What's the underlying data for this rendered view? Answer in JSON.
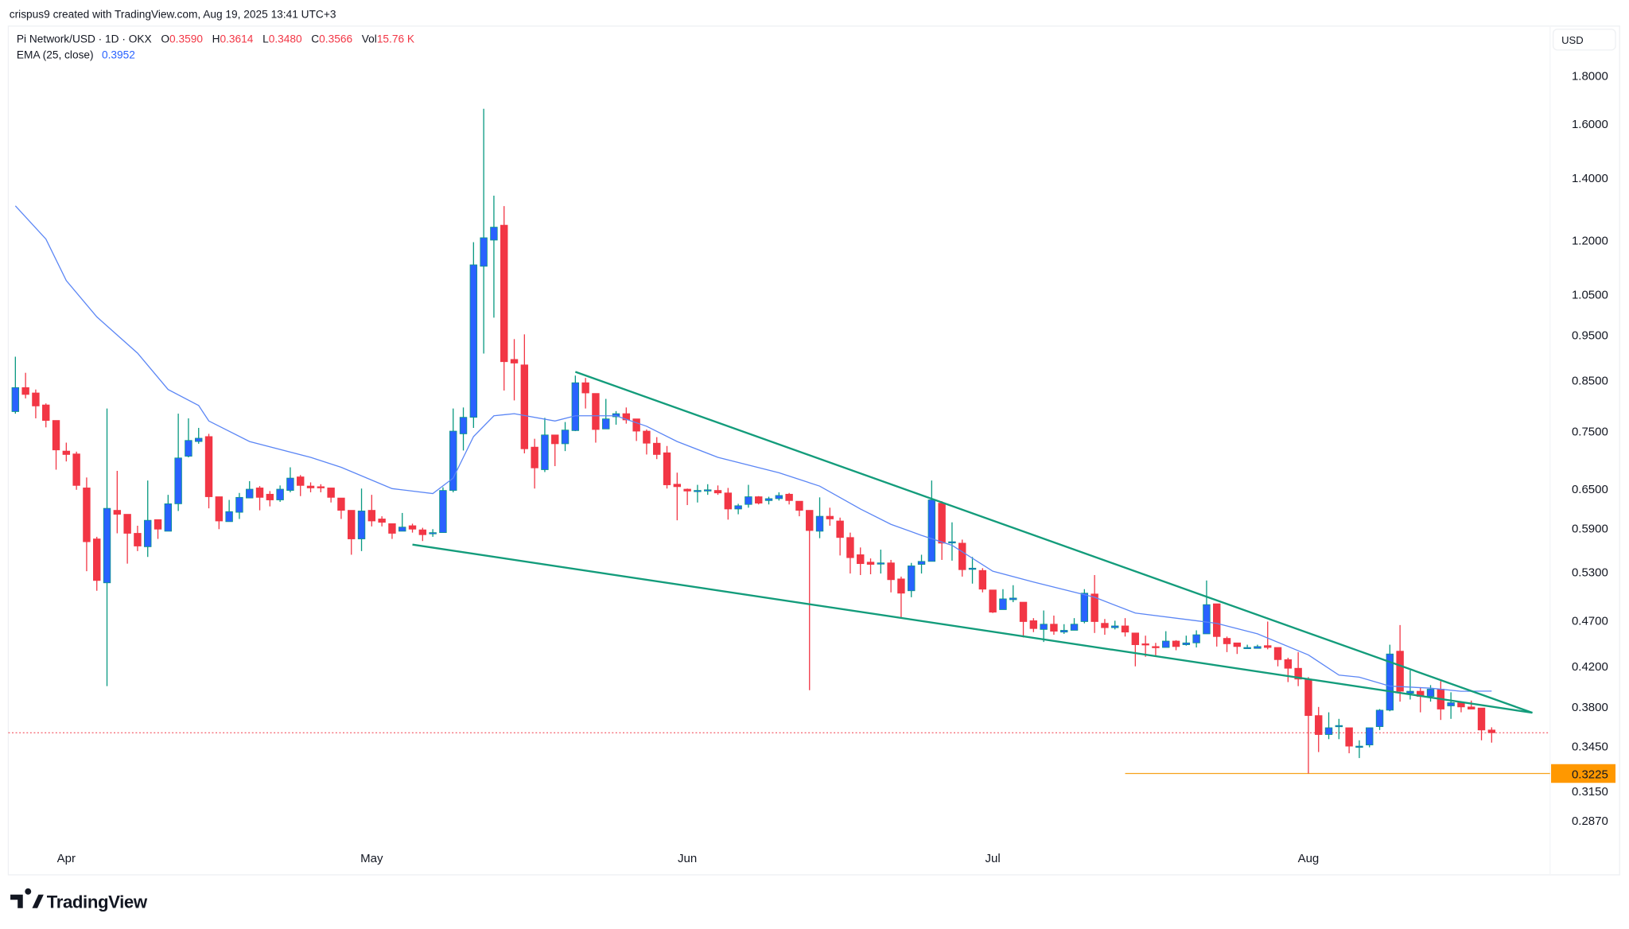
{
  "attribution": "crispus9 created with TradingView.com, Aug 19, 2025 13:41 UTC+3",
  "legend": {
    "symbol": "Pi Network/USD · 1D · OKX",
    "open_label": "O",
    "open": "0.3590",
    "high_label": "H",
    "high": "0.3614",
    "low_label": "L",
    "low": "0.3480",
    "close_label": "C",
    "close": "0.3566",
    "vol_label": "Vol",
    "vol": "15.76 K",
    "ema_label": "EMA (25, close)",
    "ema_value": "0.3952"
  },
  "currency": "USD",
  "branding": {
    "logo_text": "TradingView"
  },
  "chart_data": {
    "type": "candlestick",
    "title": "Pi Network/USD · 1D · OKX",
    "y_scale": "log",
    "ylim": [
      0.265,
      1.8
    ],
    "grid": false,
    "y_ticks": [
      "1.8000",
      "1.6000",
      "1.4000",
      "1.2000",
      "1.0500",
      "0.9500",
      "0.8500",
      "0.7500",
      "0.6500",
      "0.5900",
      "0.5300",
      "0.4700",
      "0.4200",
      "0.3800",
      "0.3450",
      "0.3150",
      "0.2870"
    ],
    "x_ticks": [
      {
        "label": "Apr",
        "date": "2025-04-01"
      },
      {
        "label": "May",
        "date": "2025-05-01"
      },
      {
        "label": "Jun",
        "date": "2025-06-01"
      },
      {
        "label": "Jul",
        "date": "2025-07-01"
      },
      {
        "label": "Aug",
        "date": "2025-08-01"
      }
    ],
    "colors": {
      "up": "#2962ff",
      "up_wick": "#089981",
      "down": "#f23645",
      "ema": "#5b86f5",
      "trendline": "#139c7b",
      "support": "#f7a21b",
      "last_price": "#f23645"
    },
    "candles_columns": [
      "date",
      "open",
      "high",
      "low",
      "close"
    ],
    "candles": [
      [
        "2025-03-27",
        0.787,
        0.901,
        0.783,
        0.835
      ],
      [
        "2025-03-28",
        0.835,
        0.866,
        0.813,
        0.821
      ],
      [
        "2025-03-29",
        0.824,
        0.831,
        0.774,
        0.798
      ],
      [
        "2025-03-30",
        0.8,
        0.803,
        0.757,
        0.77
      ],
      [
        "2025-03-31",
        0.77,
        0.77,
        0.682,
        0.716
      ],
      [
        "2025-04-01",
        0.714,
        0.729,
        0.696,
        0.708
      ],
      [
        "2025-04-02",
        0.709,
        0.713,
        0.649,
        0.656
      ],
      [
        "2025-04-03",
        0.652,
        0.669,
        0.531,
        0.571
      ],
      [
        "2025-04-04",
        0.575,
        0.578,
        0.506,
        0.519
      ],
      [
        "2025-04-05",
        0.516,
        0.793,
        0.4,
        0.62
      ],
      [
        "2025-04-06",
        0.617,
        0.68,
        0.583,
        0.611
      ],
      [
        "2025-04-07",
        0.611,
        0.611,
        0.541,
        0.583
      ],
      [
        "2025-04-08",
        0.583,
        0.594,
        0.558,
        0.565
      ],
      [
        "2025-04-09",
        0.564,
        0.664,
        0.55,
        0.602
      ],
      [
        "2025-04-10",
        0.603,
        0.603,
        0.575,
        0.589
      ],
      [
        "2025-04-11",
        0.586,
        0.641,
        0.586,
        0.627
      ],
      [
        "2025-04-12",
        0.627,
        0.783,
        0.616,
        0.702
      ],
      [
        "2025-04-13",
        0.705,
        0.774,
        0.703,
        0.733
      ],
      [
        "2025-04-14",
        0.731,
        0.756,
        0.727,
        0.737
      ],
      [
        "2025-04-15",
        0.74,
        0.745,
        0.62,
        0.638
      ],
      [
        "2025-04-16",
        0.638,
        0.638,
        0.589,
        0.601
      ],
      [
        "2025-04-17",
        0.6,
        0.633,
        0.6,
        0.615
      ],
      [
        "2025-04-18",
        0.614,
        0.644,
        0.604,
        0.637
      ],
      [
        "2025-04-19",
        0.636,
        0.663,
        0.636,
        0.65
      ],
      [
        "2025-04-20",
        0.652,
        0.655,
        0.617,
        0.637
      ],
      [
        "2025-04-21",
        0.642,
        0.647,
        0.623,
        0.633
      ],
      [
        "2025-04-22",
        0.633,
        0.656,
        0.63,
        0.65
      ],
      [
        "2025-04-23",
        0.648,
        0.686,
        0.645,
        0.668
      ],
      [
        "2025-04-24",
        0.67,
        0.673,
        0.639,
        0.656
      ],
      [
        "2025-04-25",
        0.655,
        0.661,
        0.645,
        0.652
      ],
      [
        "2025-04-26",
        0.654,
        0.658,
        0.645,
        0.653
      ],
      [
        "2025-04-27",
        0.652,
        0.652,
        0.629,
        0.637
      ],
      [
        "2025-04-28",
        0.636,
        0.636,
        0.604,
        0.617
      ],
      [
        "2025-04-29",
        0.617,
        0.617,
        0.553,
        0.575
      ],
      [
        "2025-04-30",
        0.575,
        0.651,
        0.558,
        0.616
      ],
      [
        "2025-05-01",
        0.617,
        0.641,
        0.593,
        0.601
      ],
      [
        "2025-05-02",
        0.604,
        0.608,
        0.593,
        0.599
      ],
      [
        "2025-05-03",
        0.597,
        0.597,
        0.575,
        0.583
      ],
      [
        "2025-05-04",
        0.586,
        0.613,
        0.586,
        0.592
      ],
      [
        "2025-05-05",
        0.594,
        0.597,
        0.584,
        0.589
      ],
      [
        "2025-05-06",
        0.588,
        0.591,
        0.572,
        0.581
      ],
      [
        "2025-05-07",
        0.583,
        0.589,
        0.578,
        0.584
      ],
      [
        "2025-05-08",
        0.584,
        0.653,
        0.584,
        0.648
      ],
      [
        "2025-05-09",
        0.648,
        0.793,
        0.645,
        0.75
      ],
      [
        "2025-05-10",
        0.745,
        0.795,
        0.715,
        0.776
      ],
      [
        "2025-05-11",
        0.776,
        1.195,
        0.756,
        1.13
      ],
      [
        "2025-05-12",
        1.126,
        1.66,
        0.908,
        1.208
      ],
      [
        "2025-05-13",
        1.201,
        1.34,
        0.992,
        1.24
      ],
      [
        "2025-05-14",
        1.246,
        1.306,
        0.829,
        0.89
      ],
      [
        "2025-05-15",
        0.895,
        0.941,
        0.809,
        0.887
      ],
      [
        "2025-05-16",
        0.883,
        0.952,
        0.71,
        0.718
      ],
      [
        "2025-05-17",
        0.721,
        0.736,
        0.651,
        0.685
      ],
      [
        "2025-05-18",
        0.682,
        0.775,
        0.678,
        0.743
      ],
      [
        "2025-05-19",
        0.743,
        0.743,
        0.688,
        0.727
      ],
      [
        "2025-05-20",
        0.727,
        0.767,
        0.714,
        0.752
      ],
      [
        "2025-05-21",
        0.751,
        0.86,
        0.75,
        0.845
      ],
      [
        "2025-05-22",
        0.845,
        0.855,
        0.793,
        0.824
      ],
      [
        "2025-05-23",
        0.823,
        0.823,
        0.729,
        0.753
      ],
      [
        "2025-05-24",
        0.754,
        0.812,
        0.754,
        0.773
      ],
      [
        "2025-05-25",
        0.777,
        0.788,
        0.762,
        0.783
      ],
      [
        "2025-05-26",
        0.783,
        0.795,
        0.764,
        0.771
      ],
      [
        "2025-05-27",
        0.773,
        0.773,
        0.732,
        0.75
      ],
      [
        "2025-05-28",
        0.75,
        0.753,
        0.708,
        0.728
      ],
      [
        "2025-05-29",
        0.728,
        0.739,
        0.7,
        0.708
      ],
      [
        "2025-05-30",
        0.711,
        0.723,
        0.651,
        0.657
      ],
      [
        "2025-05-31",
        0.658,
        0.677,
        0.602,
        0.654
      ],
      [
        "2025-06-01",
        0.65,
        0.651,
        0.625,
        0.647
      ],
      [
        "2025-06-02",
        0.647,
        0.657,
        0.629,
        0.648
      ],
      [
        "2025-06-03",
        0.648,
        0.658,
        0.641,
        0.649
      ],
      [
        "2025-06-04",
        0.648,
        0.656,
        0.641,
        0.644
      ],
      [
        "2025-06-05",
        0.644,
        0.652,
        0.603,
        0.619
      ],
      [
        "2025-06-06",
        0.619,
        0.627,
        0.611,
        0.624
      ],
      [
        "2025-06-07",
        0.626,
        0.657,
        0.621,
        0.638
      ],
      [
        "2025-06-08",
        0.638,
        0.639,
        0.626,
        0.628
      ],
      [
        "2025-06-09",
        0.632,
        0.638,
        0.626,
        0.635
      ],
      [
        "2025-06-10",
        0.635,
        0.645,
        0.632,
        0.64
      ],
      [
        "2025-06-11",
        0.642,
        0.644,
        0.626,
        0.632
      ],
      [
        "2025-06-12",
        0.631,
        0.631,
        0.608,
        0.617
      ],
      [
        "2025-06-13",
        0.617,
        0.617,
        0.396,
        0.587
      ],
      [
        "2025-06-14",
        0.586,
        0.637,
        0.576,
        0.608
      ],
      [
        "2025-06-15",
        0.608,
        0.621,
        0.594,
        0.604
      ],
      [
        "2025-06-16",
        0.601,
        0.606,
        0.552,
        0.577
      ],
      [
        "2025-06-17",
        0.577,
        0.584,
        0.528,
        0.549
      ],
      [
        "2025-06-18",
        0.553,
        0.563,
        0.526,
        0.541
      ],
      [
        "2025-06-19",
        0.543,
        0.548,
        0.527,
        0.54
      ],
      [
        "2025-06-20",
        0.542,
        0.56,
        0.528,
        0.542
      ],
      [
        "2025-06-21",
        0.542,
        0.546,
        0.504,
        0.52
      ],
      [
        "2025-06-22",
        0.521,
        0.524,
        0.474,
        0.503
      ],
      [
        "2025-06-23",
        0.506,
        0.542,
        0.498,
        0.538
      ],
      [
        "2025-06-24",
        0.54,
        0.553,
        0.528,
        0.544
      ],
      [
        "2025-06-25",
        0.544,
        0.664,
        0.544,
        0.633
      ],
      [
        "2025-06-26",
        0.628,
        0.631,
        0.546,
        0.569
      ],
      [
        "2025-06-27",
        0.571,
        0.599,
        0.545,
        0.571
      ],
      [
        "2025-06-28",
        0.569,
        0.574,
        0.524,
        0.533
      ],
      [
        "2025-06-29",
        0.535,
        0.55,
        0.515,
        0.535
      ],
      [
        "2025-06-30",
        0.532,
        0.535,
        0.504,
        0.508
      ],
      [
        "2025-07-01",
        0.507,
        0.507,
        0.479,
        0.48
      ],
      [
        "2025-07-02",
        0.483,
        0.508,
        0.483,
        0.496
      ],
      [
        "2025-07-03",
        0.495,
        0.513,
        0.492,
        0.497
      ],
      [
        "2025-07-04",
        0.492,
        0.492,
        0.451,
        0.469
      ],
      [
        "2025-07-05",
        0.47,
        0.473,
        0.457,
        0.461
      ],
      [
        "2025-07-06",
        0.46,
        0.482,
        0.446,
        0.466
      ],
      [
        "2025-07-07",
        0.466,
        0.476,
        0.454,
        0.458
      ],
      [
        "2025-07-08",
        0.457,
        0.466,
        0.455,
        0.459
      ],
      [
        "2025-07-09",
        0.459,
        0.473,
        0.459,
        0.466
      ],
      [
        "2025-07-10",
        0.469,
        0.508,
        0.467,
        0.503
      ],
      [
        "2025-07-11",
        0.502,
        0.526,
        0.456,
        0.469
      ],
      [
        "2025-07-12",
        0.467,
        0.472,
        0.454,
        0.462
      ],
      [
        "2025-07-13",
        0.462,
        0.47,
        0.46,
        0.464
      ],
      [
        "2025-07-14",
        0.464,
        0.473,
        0.452,
        0.457
      ],
      [
        "2025-07-15",
        0.456,
        0.456,
        0.42,
        0.443
      ],
      [
        "2025-07-16",
        0.444,
        0.453,
        0.43,
        0.443
      ],
      [
        "2025-07-17",
        0.441,
        0.445,
        0.431,
        0.44
      ],
      [
        "2025-07-18",
        0.44,
        0.458,
        0.44,
        0.447
      ],
      [
        "2025-07-19",
        0.447,
        0.448,
        0.437,
        0.441
      ],
      [
        "2025-07-20",
        0.443,
        0.453,
        0.442,
        0.445
      ],
      [
        "2025-07-21",
        0.445,
        0.459,
        0.44,
        0.454
      ],
      [
        "2025-07-22",
        0.455,
        0.519,
        0.455,
        0.489
      ],
      [
        "2025-07-23",
        0.49,
        0.49,
        0.441,
        0.452
      ],
      [
        "2025-07-24",
        0.45,
        0.452,
        0.435,
        0.444
      ],
      [
        "2025-07-25",
        0.445,
        0.445,
        0.433,
        0.441
      ],
      [
        "2025-07-26",
        0.44,
        0.443,
        0.439,
        0.44
      ],
      [
        "2025-07-27",
        0.439,
        0.443,
        0.439,
        0.441
      ],
      [
        "2025-07-28",
        0.442,
        0.469,
        0.438,
        0.44
      ],
      [
        "2025-07-29",
        0.44,
        0.44,
        0.42,
        0.427
      ],
      [
        "2025-07-30",
        0.427,
        0.429,
        0.404,
        0.418
      ],
      [
        "2025-07-31",
        0.418,
        0.435,
        0.4,
        0.407
      ],
      [
        "2025-08-01",
        0.407,
        0.409,
        0.3225,
        0.372
      ],
      [
        "2025-08-02",
        0.372,
        0.38,
        0.34,
        0.355
      ],
      [
        "2025-08-03",
        0.355,
        0.375,
        0.351,
        0.361
      ],
      [
        "2025-08-04",
        0.363,
        0.369,
        0.351,
        0.363
      ],
      [
        "2025-08-05",
        0.361,
        0.361,
        0.339,
        0.345
      ],
      [
        "2025-08-06",
        0.345,
        0.35,
        0.335,
        0.345
      ],
      [
        "2025-08-07",
        0.346,
        0.361,
        0.344,
        0.361
      ],
      [
        "2025-08-08",
        0.362,
        0.378,
        0.359,
        0.377
      ],
      [
        "2025-08-09",
        0.377,
        0.443,
        0.376,
        0.433
      ],
      [
        "2025-08-10",
        0.436,
        0.465,
        0.385,
        0.395
      ],
      [
        "2025-08-11",
        0.393,
        0.416,
        0.387,
        0.395
      ],
      [
        "2025-08-12",
        0.395,
        0.399,
        0.375,
        0.39
      ],
      [
        "2025-08-13",
        0.39,
        0.401,
        0.385,
        0.397
      ],
      [
        "2025-08-14",
        0.397,
        0.405,
        0.368,
        0.378
      ],
      [
        "2025-08-15",
        0.381,
        0.394,
        0.369,
        0.384
      ],
      [
        "2025-08-16",
        0.384,
        0.385,
        0.375,
        0.38
      ],
      [
        "2025-08-17",
        0.38,
        0.386,
        0.378,
        0.378
      ],
      [
        "2025-08-18",
        0.379,
        0.379,
        0.35,
        0.359
      ],
      [
        "2025-08-19",
        0.359,
        0.3614,
        0.348,
        0.3566
      ]
    ],
    "ema": {
      "name": "EMA (25, close)",
      "points": [
        [
          "2025-03-27",
          1.307
        ],
        [
          "2025-03-30",
          1.204
        ],
        [
          "2025-04-01",
          1.087
        ],
        [
          "2025-04-04",
          0.994
        ],
        [
          "2025-04-08",
          0.909
        ],
        [
          "2025-04-11",
          0.831
        ],
        [
          "2025-04-14",
          0.799
        ],
        [
          "2025-04-15",
          0.769
        ],
        [
          "2025-04-19",
          0.731
        ],
        [
          "2025-04-25",
          0.703
        ],
        [
          "2025-04-28",
          0.686
        ],
        [
          "2025-05-03",
          0.651
        ],
        [
          "2025-05-07",
          0.643
        ],
        [
          "2025-05-09",
          0.668
        ],
        [
          "2025-05-11",
          0.74
        ],
        [
          "2025-05-13",
          0.779
        ],
        [
          "2025-05-15",
          0.783
        ],
        [
          "2025-05-19",
          0.769
        ],
        [
          "2025-05-21",
          0.779
        ],
        [
          "2025-05-25",
          0.779
        ],
        [
          "2025-05-28",
          0.759
        ],
        [
          "2025-05-31",
          0.731
        ],
        [
          "2025-06-04",
          0.703
        ],
        [
          "2025-06-10",
          0.677
        ],
        [
          "2025-06-14",
          0.655
        ],
        [
          "2025-06-18",
          0.619
        ],
        [
          "2025-06-21",
          0.596
        ],
        [
          "2025-06-24",
          0.58
        ],
        [
          "2025-06-27",
          0.566
        ],
        [
          "2025-07-01",
          0.531
        ],
        [
          "2025-07-05",
          0.517
        ],
        [
          "2025-07-11",
          0.498
        ],
        [
          "2025-07-15",
          0.479
        ],
        [
          "2025-07-21",
          0.47
        ],
        [
          "2025-07-23",
          0.467
        ],
        [
          "2025-07-27",
          0.455
        ],
        [
          "2025-08-01",
          0.432
        ],
        [
          "2025-08-04",
          0.411
        ],
        [
          "2025-08-06",
          0.409
        ],
        [
          "2025-08-09",
          0.4
        ],
        [
          "2025-08-13",
          0.398
        ],
        [
          "2025-08-16",
          0.395
        ],
        [
          "2025-08-19",
          0.3952
        ]
      ]
    },
    "trendlines": [
      {
        "from": [
          "2025-05-21",
          0.868
        ],
        "to": [
          "2025-08-23",
          0.3746
        ]
      },
      {
        "from": [
          "2025-05-05",
          0.567
        ],
        "to": [
          "2025-08-23",
          0.3746
        ]
      }
    ],
    "support": {
      "value": 0.3225,
      "label": "0.3225",
      "from": "2025-07-14"
    },
    "last_price": 0.3566
  }
}
